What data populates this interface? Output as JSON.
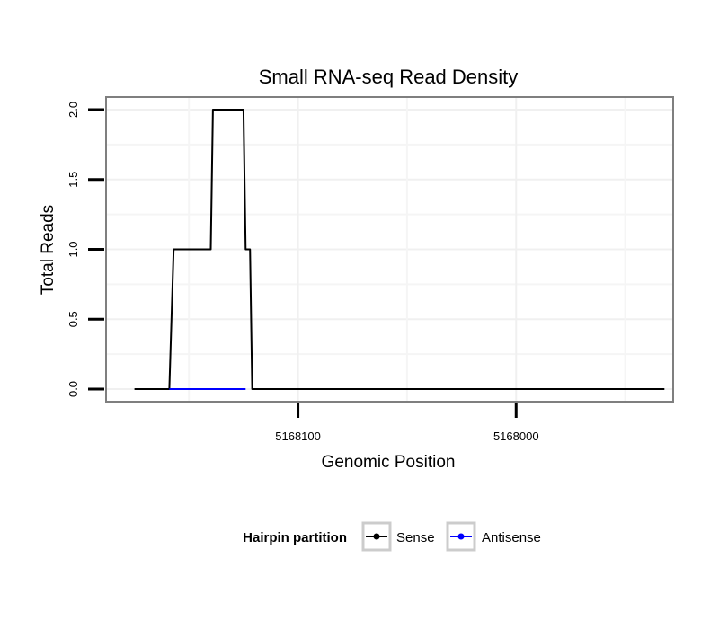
{
  "chart_data": {
    "type": "line",
    "title": "Small RNA-seq Read Density",
    "xlabel": "Genomic Position",
    "ylabel": "Total Reads",
    "x_reversed": true,
    "xlim": [
      5168188,
      5167928
    ],
    "ylim": [
      -0.09,
      2.09
    ],
    "x_ticks": [
      5168100,
      5168000
    ],
    "x_tick_labels": [
      "5168100",
      "5168000"
    ],
    "y_ticks": [
      0,
      0.5,
      1,
      1.5,
      2
    ],
    "y_tick_labels": [
      "0.0",
      "0.5",
      "1.0",
      "1.5",
      "2.0"
    ],
    "grid": true,
    "legend": {
      "title": "Hairpin partition",
      "position": "bottom",
      "entries": [
        {
          "name": "Sense",
          "color": "#000000"
        },
        {
          "name": "Antisense",
          "color": "#0000ff"
        }
      ]
    },
    "series": [
      {
        "name": "Sense",
        "color": "#000000",
        "x": [
          5168175,
          5168159,
          5168157,
          5168150,
          5168149,
          5168140,
          5168139,
          5168126,
          5168125,
          5168124,
          5168122,
          5168121,
          5167932
        ],
        "y": [
          0,
          0,
          1,
          1,
          1,
          1,
          2,
          2,
          2,
          1,
          1,
          0,
          0
        ]
      },
      {
        "name": "Antisense",
        "color": "#0000ff",
        "x": [
          5168159,
          5168124
        ],
        "y": [
          0,
          0
        ]
      }
    ]
  }
}
